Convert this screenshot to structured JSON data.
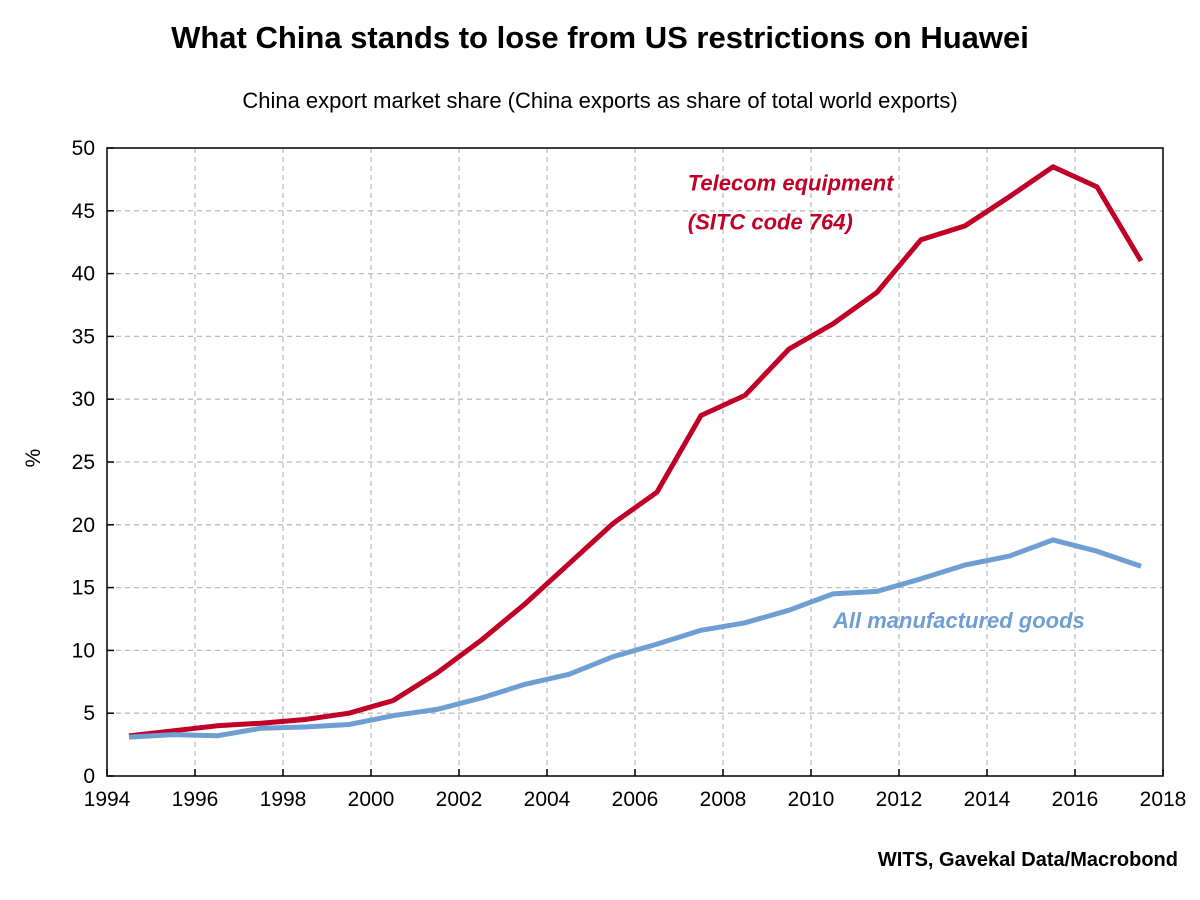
{
  "chart_data": {
    "type": "line",
    "title": "What China stands to lose from US restrictions on Huawei",
    "subtitle": "China export market share (China exports as share of total world exports)",
    "xlabel": "",
    "ylabel": "%",
    "xlim": [
      1994,
      2018
    ],
    "ylim": [
      0,
      50
    ],
    "x_ticks": [
      "1994",
      "1996",
      "1998",
      "2000",
      "2002",
      "2004",
      "2006",
      "2008",
      "2010",
      "2012",
      "2014",
      "2016",
      "2018"
    ],
    "y_ticks": [
      "0",
      "5",
      "10",
      "15",
      "20",
      "25",
      "30",
      "35",
      "40",
      "45",
      "50"
    ],
    "grid": true,
    "x": [
      1994.5,
      1995.5,
      1996.5,
      1997.5,
      1998.5,
      1999.5,
      2000.5,
      2001.5,
      2002.5,
      2003.5,
      2004.5,
      2005.5,
      2006.5,
      2007.5,
      2008.5,
      2009.5,
      2010.5,
      2011.5,
      2012.5,
      2013.5,
      2014.5,
      2015.5,
      2016.5,
      2017.5
    ],
    "series": [
      {
        "name": "Telecom equipment",
        "values": [
          3.2,
          3.6,
          4.0,
          4.2,
          4.5,
          5.0,
          6.0,
          8.2,
          10.8,
          13.7,
          16.9,
          20.1,
          22.6,
          28.7,
          30.3,
          34.0,
          36.0,
          38.5,
          42.7,
          43.8,
          46.1,
          48.5,
          46.9,
          41.0
        ],
        "color": "#c00026"
      },
      {
        "name": "All manufactured goods",
        "values": [
          3.1,
          3.3,
          3.2,
          3.8,
          3.9,
          4.1,
          4.8,
          5.3,
          6.2,
          7.3,
          8.1,
          9.5,
          10.5,
          11.6,
          12.2,
          13.2,
          14.5,
          14.7,
          15.7,
          16.8,
          17.5,
          18.8,
          17.9,
          16.7
        ],
        "color": "#6f9fd2"
      }
    ],
    "annotations": [
      {
        "text": "Telecom equipment",
        "x": 2007.2,
        "y": 46.6,
        "series": 0
      },
      {
        "text": "(SITC code 764)",
        "x": 2007.2,
        "y": 43.5,
        "series": 0
      },
      {
        "text": "All manufactured goods",
        "x": 2010.5,
        "y": 11.8,
        "series": 1
      }
    ],
    "source": "WITS, Gavekal Data/Macrobond"
  }
}
